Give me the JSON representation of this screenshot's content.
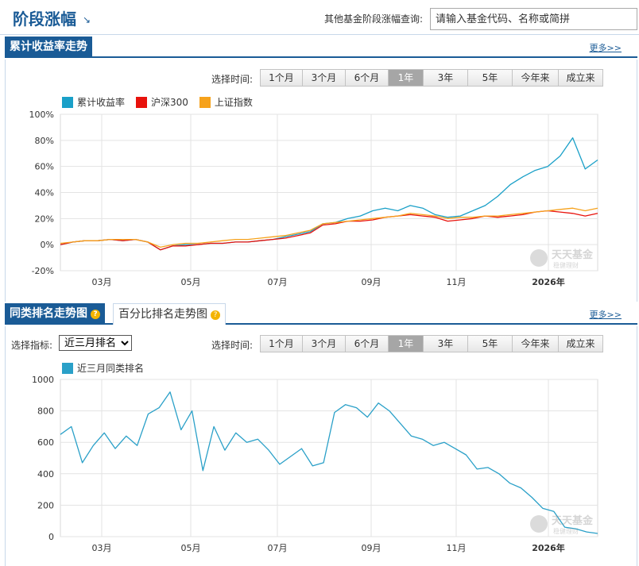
{
  "header": {
    "title": "阶段涨幅",
    "query_label": "其他基金阶段涨幅查询:",
    "query_placeholder": "请输入基金代码、名称或简拼"
  },
  "returns_section": {
    "tab": "累计收益率走势",
    "more": "更多>>",
    "range_label": "选择时间:",
    "ranges": [
      "1个月",
      "3个月",
      "6个月",
      "1年",
      "3年",
      "5年",
      "今年来",
      "成立来"
    ],
    "active_range": "1年"
  },
  "rank_section": {
    "tabs": [
      "同类排名走势图",
      "百分比排名走势图"
    ],
    "more": "更多>>",
    "indicator_label": "选择指标:",
    "indicator_value": "近三月排名",
    "range_label": "选择时间:",
    "ranges": [
      "1个月",
      "3个月",
      "6个月",
      "1年",
      "3年",
      "5年",
      "今年来",
      "成立来"
    ],
    "active_range": "1年"
  },
  "watermark": {
    "brand": "天天基金",
    "slogan": "稳健理财"
  },
  "colors": {
    "accent": "#1a5b96",
    "series_fund": "#1aa0c8",
    "series_hs300": "#e8120c",
    "series_sh": "#f6a21c",
    "rank_line": "#2aa0c8"
  },
  "chart_data": [
    {
      "type": "line",
      "x_tick_labels": [
        "03月",
        "05月",
        "07月",
        "09月",
        "11月",
        "2026年"
      ],
      "y_tick_labels": [
        "100%",
        "80%",
        "60%",
        "40%",
        "20%",
        "0%",
        "-20%"
      ],
      "ylim": [
        -20,
        100
      ],
      "grid": true,
      "legend_position": "top-left",
      "series": [
        {
          "name": "累计收益率",
          "color": "#1aa0c8",
          "values": [
            0,
            2,
            3,
            3,
            4,
            3,
            4,
            2,
            -4,
            -1,
            0,
            0,
            1,
            1,
            2,
            2,
            3,
            4,
            6,
            8,
            10,
            16,
            17,
            20,
            22,
            26,
            28,
            26,
            30,
            28,
            23,
            21,
            22,
            26,
            30,
            37,
            46,
            52,
            57,
            60,
            68,
            82,
            58,
            65
          ]
        },
        {
          "name": "沪深300",
          "color": "#e8120c",
          "values": [
            0,
            2,
            3,
            3,
            4,
            3,
            4,
            2,
            -4,
            -1,
            -1,
            0,
            1,
            1,
            2,
            2,
            3,
            4,
            5,
            7,
            9,
            15,
            16,
            18,
            18,
            19,
            21,
            22,
            23,
            22,
            21,
            18,
            19,
            20,
            22,
            21,
            22,
            23,
            25,
            26,
            25,
            24,
            22,
            24
          ]
        },
        {
          "name": "上证指数",
          "color": "#f6a21c",
          "values": [
            1,
            2,
            3,
            3,
            4,
            4,
            4,
            2,
            -2,
            0,
            1,
            1,
            2,
            3,
            4,
            4,
            5,
            6,
            7,
            9,
            11,
            16,
            17,
            18,
            19,
            20,
            21,
            22,
            24,
            23,
            22,
            20,
            21,
            21,
            22,
            22,
            23,
            24,
            25,
            26,
            27,
            28,
            26,
            28
          ]
        }
      ]
    },
    {
      "type": "line",
      "x_tick_labels": [
        "03月",
        "05月",
        "07月",
        "09月",
        "11月",
        "2026年"
      ],
      "y_tick_labels": [
        "0",
        "200",
        "400",
        "600",
        "800",
        "1000"
      ],
      "ylim": [
        1000,
        0
      ],
      "grid": true,
      "legend_position": "top-left",
      "series": [
        {
          "name": "近三月同类排名",
          "color": "#2aa0c8",
          "values": [
            650,
            700,
            470,
            580,
            660,
            560,
            640,
            580,
            780,
            820,
            920,
            680,
            800,
            420,
            700,
            550,
            660,
            600,
            620,
            550,
            460,
            510,
            560,
            450,
            470,
            790,
            840,
            820,
            760,
            850,
            800,
            720,
            640,
            620,
            580,
            600,
            560,
            520,
            430,
            440,
            400,
            340,
            310,
            250,
            180,
            160,
            60,
            50,
            30,
            20
          ]
        }
      ]
    }
  ]
}
